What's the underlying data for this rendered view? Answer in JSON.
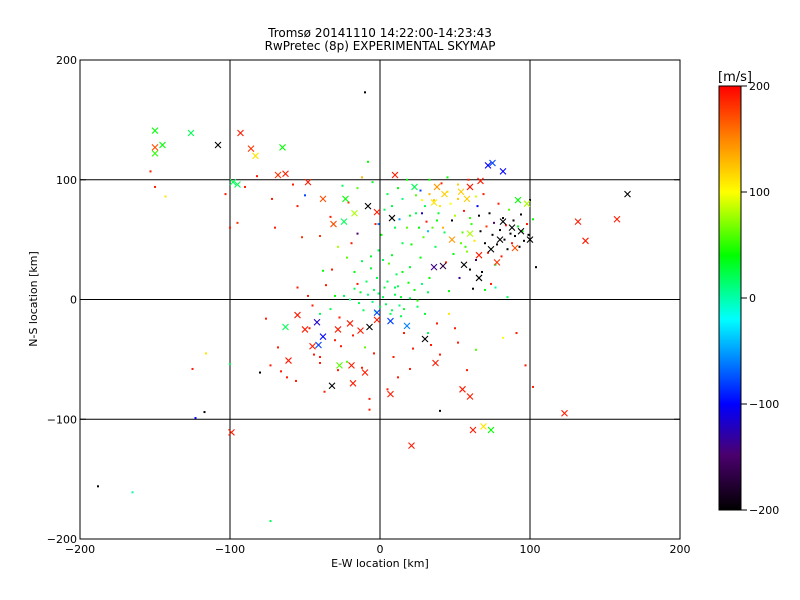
{
  "chart_data": {
    "type": "scatter",
    "title": "Tromsø 20141110 14:22:00-14:23:43",
    "subtitle": "RwPretec (8p) EXPERIMENTAL SKYMAP",
    "xlabel": "E-W location [km]",
    "ylabel": "N-S location [km]",
    "xlim": [
      -200,
      200
    ],
    "ylim": [
      -200,
      200
    ],
    "xticks": [
      -200,
      -100,
      0,
      100,
      200
    ],
    "yticks": [
      -200,
      -100,
      0,
      100,
      200
    ],
    "grid": true,
    "colorbar": {
      "label": "[m/s]",
      "range": [
        -200,
        200
      ],
      "ticks": [
        200,
        100,
        0,
        -100,
        -200
      ],
      "colormap": "black-purple-blue-cyan-green-yellow-red"
    },
    "x_markers": [
      [
        -150,
        141,
        40
      ],
      [
        -145,
        129,
        40
      ],
      [
        -150,
        122,
        50
      ],
      [
        -150,
        127,
        170
      ],
      [
        -126,
        139,
        20
      ],
      [
        -108,
        129,
        -200
      ],
      [
        -93,
        139,
        190
      ],
      [
        -86,
        126,
        180
      ],
      [
        -83,
        120,
        110
      ],
      [
        -65,
        127,
        40
      ],
      [
        -98,
        98,
        20
      ],
      [
        -95,
        96,
        20
      ],
      [
        -68,
        104,
        180
      ],
      [
        -63,
        105,
        190
      ],
      [
        -48,
        98,
        190
      ],
      [
        -38,
        84,
        170
      ],
      [
        -23,
        84,
        40
      ],
      [
        -31,
        63,
        170
      ],
      [
        -24,
        65,
        20
      ],
      [
        -17,
        72,
        80
      ],
      [
        -8,
        78,
        -200
      ],
      [
        -2,
        73,
        190
      ],
      [
        8,
        68,
        -200
      ],
      [
        10,
        104,
        190
      ],
      [
        23,
        94,
        20
      ],
      [
        38,
        94,
        140
      ],
      [
        43,
        88,
        120
      ],
      [
        36,
        81,
        110
      ],
      [
        54,
        90,
        120
      ],
      [
        58,
        84,
        120
      ],
      [
        60,
        94,
        190
      ],
      [
        67,
        99,
        190
      ],
      [
        72,
        112,
        -100
      ],
      [
        75,
        114,
        -80
      ],
      [
        82,
        107,
        -100
      ],
      [
        92,
        83,
        40
      ],
      [
        98,
        80,
        80
      ],
      [
        82,
        65,
        -200
      ],
      [
        88,
        60,
        -200
      ],
      [
        94,
        57,
        -200
      ],
      [
        100,
        50,
        -200
      ],
      [
        80,
        50,
        -200
      ],
      [
        74,
        42,
        -200
      ],
      [
        66,
        37,
        190
      ],
      [
        78,
        31,
        180
      ],
      [
        90,
        43,
        170
      ],
      [
        60,
        55,
        80
      ],
      [
        48,
        50,
        140
      ],
      [
        36,
        27,
        -140
      ],
      [
        42,
        28,
        -170
      ],
      [
        56,
        29,
        -200
      ],
      [
        66,
        18,
        -200
      ],
      [
        132,
        65,
        190
      ],
      [
        137,
        49,
        190
      ],
      [
        158,
        67,
        190
      ],
      [
        165,
        88,
        -200
      ],
      [
        -55,
        -13,
        190
      ],
      [
        -50,
        -25,
        190
      ],
      [
        -42,
        -19,
        -120
      ],
      [
        -38,
        -31,
        -100
      ],
      [
        -41,
        -38,
        -80
      ],
      [
        -28,
        -25,
        190
      ],
      [
        -20,
        -20,
        190
      ],
      [
        -13,
        -26,
        190
      ],
      [
        -7,
        -23,
        -200
      ],
      [
        -2,
        -17,
        190
      ],
      [
        7,
        -18,
        -80
      ],
      [
        -2,
        -11,
        -80
      ],
      [
        18,
        -22,
        -60
      ],
      [
        -63,
        -23,
        20
      ],
      [
        -61,
        -51,
        190
      ],
      [
        -45,
        -39,
        190
      ],
      [
        -32,
        -72,
        -200
      ],
      [
        -27,
        -55,
        60
      ],
      [
        -19,
        -55,
        190
      ],
      [
        -18,
        -70,
        190
      ],
      [
        -10,
        -61,
        190
      ],
      [
        7,
        -79,
        190
      ],
      [
        30,
        -33,
        -200
      ],
      [
        37,
        -53,
        190
      ],
      [
        55,
        -75,
        190
      ],
      [
        60,
        -81,
        190
      ],
      [
        62,
        -109,
        190
      ],
      [
        69,
        -106,
        110
      ],
      [
        74,
        -109,
        40
      ],
      [
        123,
        -95,
        190
      ],
      [
        21,
        -122,
        190
      ],
      [
        -99,
        -111,
        190
      ]
    ],
    "dot_markers": [
      [
        -188,
        -156,
        -200
      ],
      [
        -165,
        -161,
        0
      ],
      [
        -153,
        107,
        190
      ],
      [
        -143,
        86,
        110
      ],
      [
        -125,
        -58,
        190
      ],
      [
        -123,
        -99,
        -100
      ],
      [
        -117,
        -94,
        -200
      ],
      [
        -103,
        88,
        190
      ],
      [
        -100,
        60,
        190
      ],
      [
        -95,
        64,
        180
      ],
      [
        -90,
        94,
        190
      ],
      [
        -82,
        103,
        190
      ],
      [
        -80,
        -61,
        -200
      ],
      [
        -76,
        -16,
        190
      ],
      [
        -72,
        84,
        190
      ],
      [
        -70,
        60,
        190
      ],
      [
        -68,
        -40,
        190
      ],
      [
        -66,
        -60,
        190
      ],
      [
        -62,
        -65,
        190
      ],
      [
        -58,
        96,
        190
      ],
      [
        -55,
        78,
        190
      ],
      [
        -52,
        52,
        180
      ],
      [
        -50,
        87,
        -80
      ],
      [
        -47,
        -24,
        190
      ],
      [
        -44,
        -46,
        190
      ],
      [
        -40,
        -53,
        190
      ],
      [
        -37,
        -77,
        190
      ],
      [
        -33,
        69,
        190
      ],
      [
        -32,
        25,
        190
      ],
      [
        -30,
        -34,
        190
      ],
      [
        -28,
        -59,
        190
      ],
      [
        -26,
        -39,
        190
      ],
      [
        -24,
        3,
        20
      ],
      [
        -21,
        81,
        180
      ],
      [
        -19,
        47,
        190
      ],
      [
        -17,
        23,
        40
      ],
      [
        -15,
        13,
        190
      ],
      [
        -13,
        6,
        30
      ],
      [
        -12,
        102,
        130
      ],
      [
        -10,
        173,
        -200
      ],
      [
        -8,
        115,
        40
      ],
      [
        -7,
        -83,
        190
      ],
      [
        -6,
        36,
        30
      ],
      [
        -4,
        8,
        20
      ],
      [
        -3,
        63,
        190
      ],
      [
        -1,
        5,
        10
      ],
      [
        1,
        54,
        40
      ],
      [
        2,
        2,
        20
      ],
      [
        3,
        75,
        20
      ],
      [
        5,
        -75,
        190
      ],
      [
        6,
        30,
        60
      ],
      [
        8,
        -9,
        20
      ],
      [
        9,
        -48,
        190
      ],
      [
        10,
        10,
        20
      ],
      [
        12,
        93,
        40
      ],
      [
        13,
        -5,
        10
      ],
      [
        15,
        23,
        40
      ],
      [
        16,
        -28,
        190
      ],
      [
        18,
        60,
        60
      ],
      [
        20,
        1,
        20
      ],
      [
        21,
        46,
        40
      ],
      [
        22,
        -41,
        190
      ],
      [
        24,
        72,
        20
      ],
      [
        25,
        -1,
        50
      ],
      [
        27,
        91,
        -80
      ],
      [
        29,
        52,
        60
      ],
      [
        30,
        -12,
        30
      ],
      [
        31,
        65,
        190
      ],
      [
        33,
        18,
        40
      ],
      [
        34,
        -38,
        190
      ],
      [
        36,
        83,
        120
      ],
      [
        37,
        44,
        20
      ],
      [
        39,
        72,
        30
      ],
      [
        40,
        -46,
        190
      ],
      [
        41,
        97,
        190
      ],
      [
        42,
        60,
        130
      ],
      [
        44,
        31,
        190
      ],
      [
        45,
        90,
        110
      ],
      [
        46,
        7,
        40
      ],
      [
        48,
        66,
        -200
      ],
      [
        49,
        38,
        40
      ],
      [
        50,
        -24,
        190
      ],
      [
        52,
        84,
        120
      ],
      [
        53,
        18,
        -140
      ],
      [
        55,
        56,
        60
      ],
      [
        56,
        74,
        190
      ],
      [
        57,
        44,
        50
      ],
      [
        58,
        -59,
        190
      ],
      [
        59,
        100,
        190
      ],
      [
        60,
        25,
        -200
      ],
      [
        61,
        63,
        50
      ],
      [
        62,
        9,
        -200
      ],
      [
        63,
        49,
        110
      ],
      [
        64,
        33,
        -160
      ],
      [
        65,
        78,
        -100
      ],
      [
        66,
        70,
        -200
      ],
      [
        67,
        57,
        -200
      ],
      [
        68,
        23,
        -200
      ],
      [
        69,
        88,
        190
      ],
      [
        70,
        47,
        -200
      ],
      [
        71,
        61,
        180
      ],
      [
        72,
        39,
        190
      ],
      [
        73,
        72,
        -200
      ],
      [
        74,
        13,
        190
      ],
      [
        75,
        54,
        -200
      ],
      [
        76,
        64,
        -150
      ],
      [
        77,
        29,
        20
      ],
      [
        78,
        46,
        -200
      ],
      [
        79,
        80,
        190
      ],
      [
        80,
        58,
        -200
      ],
      [
        81,
        36,
        190
      ],
      [
        82,
        68,
        -200
      ],
      [
        83,
        50,
        -200
      ],
      [
        84,
        62,
        190
      ],
      [
        85,
        42,
        -200
      ],
      [
        86,
        75,
        60
      ],
      [
        87,
        55,
        -200
      ],
      [
        88,
        47,
        190
      ],
      [
        89,
        66,
        -200
      ],
      [
        90,
        53,
        -200
      ],
      [
        92,
        61,
        30
      ],
      [
        93,
        44,
        -200
      ],
      [
        94,
        71,
        -200
      ],
      [
        95,
        57,
        40
      ],
      [
        96,
        49,
        -200
      ],
      [
        98,
        63,
        190
      ],
      [
        99,
        54,
        -200
      ],
      [
        100,
        83,
        -200
      ],
      [
        102,
        67,
        40
      ],
      [
        104,
        27,
        -200
      ],
      [
        91,
        -28,
        190
      ],
      [
        97,
        -55,
        190
      ],
      [
        102,
        -73,
        190
      ],
      [
        -100,
        -54,
        20
      ],
      [
        -116,
        -45,
        110
      ],
      [
        -40,
        -48,
        190
      ],
      [
        -56,
        -68,
        190
      ],
      [
        -73,
        -55,
        190
      ],
      [
        40,
        -93,
        -200
      ],
      [
        -7,
        -92,
        190
      ],
      [
        -73,
        -185,
        20
      ],
      [
        -40,
        53,
        180
      ],
      [
        -150,
        94,
        190
      ],
      [
        12,
        11,
        20
      ],
      [
        -5,
        -2,
        10
      ],
      [
        4,
        -4,
        20
      ],
      [
        -9,
        15,
        20
      ],
      [
        14,
        2,
        30
      ],
      [
        -2,
        18,
        20
      ],
      [
        7,
        -12,
        20
      ],
      [
        -14,
        -3,
        20
      ],
      [
        19,
        14,
        40
      ],
      [
        -6,
        26,
        30
      ],
      [
        11,
        21,
        20
      ],
      [
        2,
        33,
        20
      ],
      [
        -17,
        9,
        20
      ],
      [
        16,
        -8,
        30
      ],
      [
        23,
        8,
        40
      ],
      [
        -11,
        -9,
        20
      ],
      [
        28,
        13,
        10
      ],
      [
        -1,
        41,
        20
      ],
      [
        8,
        37,
        30
      ],
      [
        -20,
        0,
        10
      ],
      [
        25,
        -6,
        20
      ],
      [
        32,
        6,
        20
      ],
      [
        0,
        -6,
        20
      ],
      [
        5,
        15,
        20
      ],
      [
        -8,
        4,
        10
      ],
      [
        10,
        4,
        20
      ],
      [
        3,
        10,
        30
      ],
      [
        -3,
        -10,
        20
      ],
      [
        14,
        -14,
        20
      ],
      [
        20,
        27,
        30
      ],
      [
        -12,
        32,
        20
      ],
      [
        27,
        35,
        40
      ],
      [
        35,
        60,
        60
      ],
      [
        30,
        78,
        20
      ],
      [
        15,
        84,
        10
      ],
      [
        20,
        70,
        30
      ],
      [
        26,
        60,
        40
      ],
      [
        10,
        60,
        20
      ],
      [
        5,
        88,
        20
      ],
      [
        18,
        100,
        40
      ],
      [
        -5,
        98,
        30
      ],
      [
        -15,
        93,
        60
      ],
      [
        -25,
        95,
        20
      ],
      [
        33,
        100,
        40
      ],
      [
        45,
        102,
        40
      ],
      [
        40,
        78,
        110
      ],
      [
        50,
        70,
        80
      ],
      [
        47,
        80,
        100
      ],
      [
        52,
        96,
        120
      ],
      [
        33,
        88,
        130
      ],
      [
        28,
        83,
        100
      ],
      [
        24,
        87,
        60
      ],
      [
        38,
        66,
        40
      ],
      [
        43,
        56,
        20
      ],
      [
        54,
        47,
        60
      ],
      [
        60,
        68,
        50
      ],
      [
        64,
        86,
        90
      ],
      [
        58,
        40,
        70
      ],
      [
        15,
        47,
        20
      ],
      [
        8,
        78,
        20
      ],
      [
        -1,
        63,
        -60
      ],
      [
        13,
        67,
        -50
      ],
      [
        28,
        72,
        -120
      ],
      [
        32,
        57,
        -40
      ],
      [
        70,
        8,
        40
      ],
      [
        85,
        2,
        20
      ],
      [
        77,
        10,
        0
      ],
      [
        -22,
        35,
        60
      ],
      [
        -28,
        44,
        80
      ],
      [
        -36,
        12,
        190
      ],
      [
        -30,
        3,
        40
      ],
      [
        -33,
        -8,
        20
      ],
      [
        -40,
        -12,
        20
      ],
      [
        -45,
        -5,
        190
      ],
      [
        -27,
        -15,
        190
      ],
      [
        -18,
        -30,
        190
      ],
      [
        -10,
        -40,
        60
      ],
      [
        -22,
        -52,
        60
      ],
      [
        -12,
        -57,
        190
      ],
      [
        -4,
        -45,
        190
      ],
      [
        38,
        -20,
        190
      ],
      [
        46,
        -12,
        110
      ],
      [
        32,
        -28,
        20
      ],
      [
        52,
        -36,
        190
      ],
      [
        64,
        -42,
        60
      ],
      [
        82,
        -32,
        100
      ],
      [
        12,
        -65,
        190
      ],
      [
        20,
        -58,
        190
      ],
      [
        -48,
        3,
        190
      ],
      [
        -55,
        10,
        190
      ],
      [
        -38,
        24,
        40
      ],
      [
        -15,
        55,
        -150
      ]
    ]
  }
}
